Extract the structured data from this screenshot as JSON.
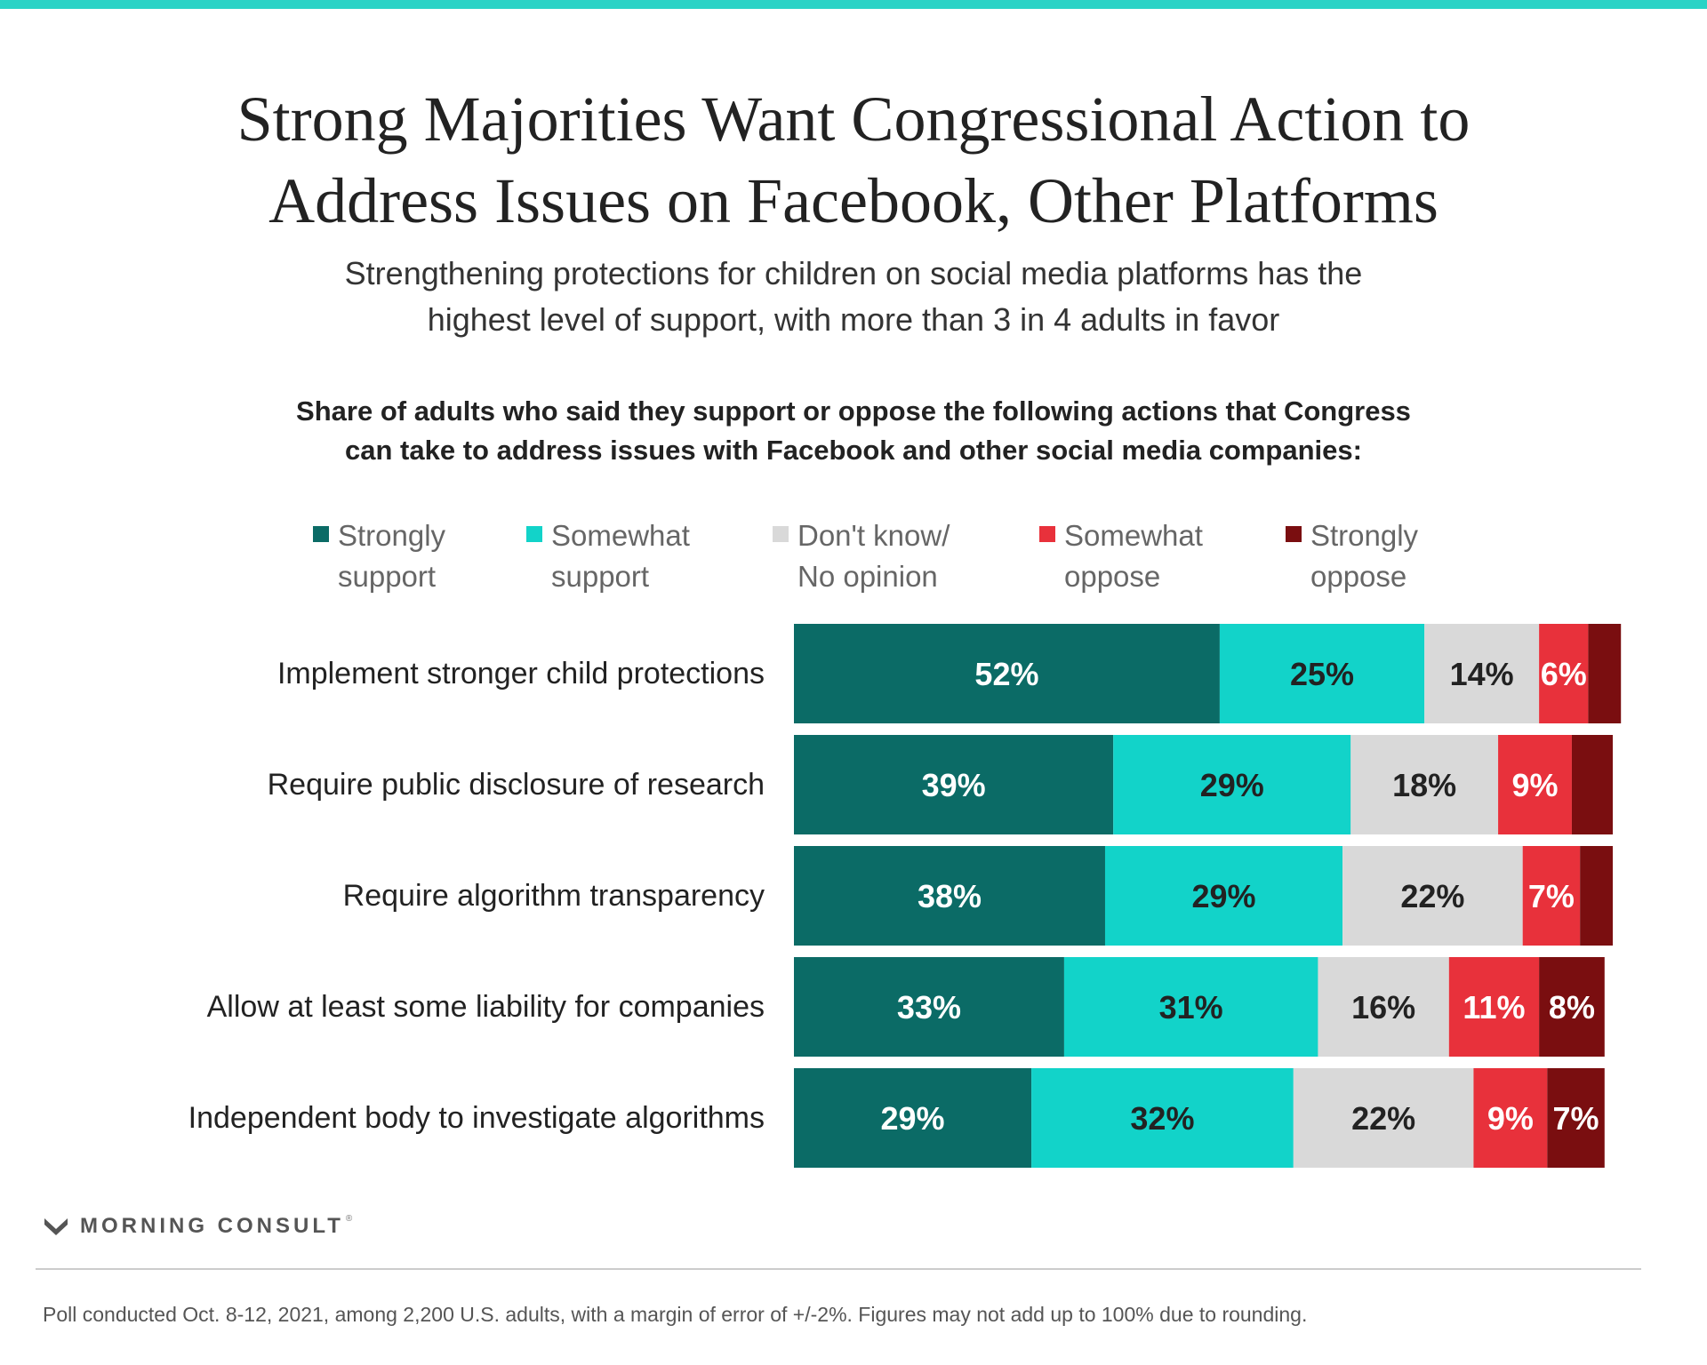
{
  "header": {
    "title_line1": "Strong Majorities Want Congressional Action to",
    "title_line2": "Address Issues on Facebook, Other Platforms",
    "subtitle_line1": "Strengthening protections for children on social media platforms has the",
    "subtitle_line2": "highest level of support, with more than 3 in 4 adults in favor",
    "question_line1": "Share of adults who said they support or oppose the following actions that Congress",
    "question_line2": "can take to address issues with Facebook and other social media companies:"
  },
  "chart_data": {
    "type": "bar",
    "orientation": "horizontal",
    "stacked": true,
    "unit": "%",
    "categories": [
      "Implement stronger child protections",
      "Require public disclosure of research",
      "Require algorithm transparency",
      "Allow at least some liability for companies",
      "Independent body to investigate algorithms"
    ],
    "series": [
      {
        "name": "Strongly\nsupport",
        "color": "#0b6b66",
        "label_color": "#ffffff",
        "values": [
          52,
          39,
          38,
          33,
          29
        ]
      },
      {
        "name": "Somewhat\nsupport",
        "color": "#12d3c9",
        "label_color": "#222222",
        "values": [
          25,
          29,
          29,
          31,
          32
        ]
      },
      {
        "name": "Don't know/\nNo opinion",
        "color": "#d9d9d9",
        "label_color": "#222222",
        "values": [
          14,
          18,
          22,
          16,
          22
        ]
      },
      {
        "name": "Somewhat\noppose",
        "color": "#e8313b",
        "label_color": "#ffffff",
        "values": [
          6,
          9,
          7,
          11,
          9
        ]
      },
      {
        "name": "Strongly\noppose",
        "color": "#7a0e10",
        "label_color": "#ffffff",
        "values": [
          4,
          5,
          4,
          8,
          7
        ]
      }
    ],
    "data_labels": [
      [
        "52%",
        "25%",
        "14%",
        "6%",
        ""
      ],
      [
        "39%",
        "29%",
        "18%",
        "9%",
        ""
      ],
      [
        "38%",
        "29%",
        "22%",
        "7%",
        ""
      ],
      [
        "33%",
        "31%",
        "16%",
        "11%",
        "8%"
      ],
      [
        "29%",
        "32%",
        "22%",
        "9%",
        "7%"
      ]
    ],
    "legend_position": "top"
  },
  "brand": {
    "name": "MORNING CONSULT",
    "reg": "®"
  },
  "footnote": "Poll conducted Oct. 8-12, 2021, among 2,200 U.S. adults, with a margin of error of +/-2%. Figures may not add up to 100% due to rounding."
}
